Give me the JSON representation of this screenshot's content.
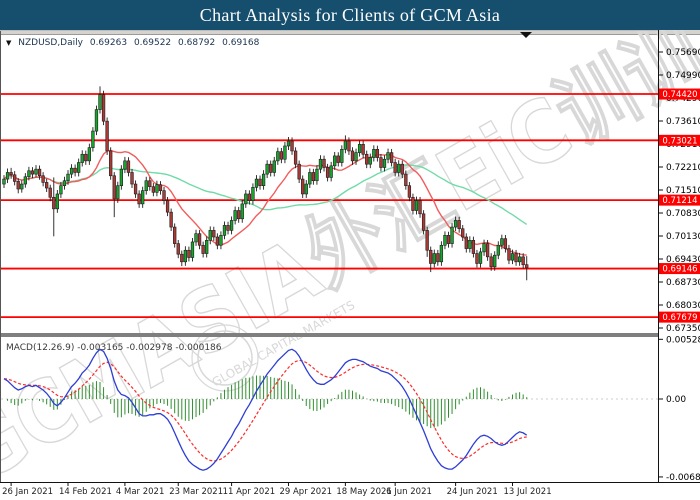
{
  "title_bar": {
    "text": "Chart Analysis for Clients of GCM Asia",
    "bg": "#164f6e",
    "fg": "#ffffff"
  },
  "chart_header": {
    "collapse_icon": "▼",
    "symbol_period": "NZDUSD,Daily",
    "open": "0.69263",
    "high": "0.69522",
    "low": "0.68792",
    "close": "0.69168"
  },
  "indicator": {
    "name": "MACD(12.26.9)",
    "value_macd": "-0.003165",
    "value_signal": "-0.002978",
    "value_histogram": "-0.000186",
    "label": "MACD(12.26.9) -0.003165 -0.002978 -0.000186"
  },
  "watermark": {
    "text_main": "GCMASIA",
    "text_suffix": "外汇EiC训训",
    "stamp": "GLOBAL CAPITAL MARKETS",
    "color": "#d8d8d8"
  },
  "shift_marker_icon": "down-triangle",
  "colors": {
    "titlebar_bg": "#164f6e",
    "titlebar_fg": "#ffffff",
    "level_line": "#ff0000",
    "tag_bg": "#ff0000",
    "tag_fg": "#ffffff",
    "bull_body": "#18a52d",
    "bear_body": "#a93a36",
    "candle_outline": "#1c1c1c",
    "ma_fast": "#f25c5c",
    "ma_slow": "#71dba8",
    "macd_line": "#2e3fd4",
    "signal_line": "#ff2a2a",
    "histogram": "#2f8f2f",
    "axis_text": "#000000",
    "frame": "#555555",
    "splitter": "#7f7f7f"
  },
  "price_axis": {
    "tick_labels": [
      "0.75690",
      "0.74990",
      "0.74290",
      "0.73610",
      "0.72910",
      "0.72210",
      "0.71510",
      "0.70830",
      "0.70130",
      "0.69430",
      "0.68730",
      "0.68030",
      "0.67350"
    ]
  },
  "macd_axis": {
    "ticks": [
      {
        "label": "0.005283",
        "value": 0.005283
      },
      {
        "label": "0.00",
        "value": 0.0
      },
      {
        "label": "-0.006897",
        "value": -0.006897
      }
    ]
  },
  "level_lines": [
    {
      "price": 0.7442,
      "label": "0.74420"
    },
    {
      "price": 0.73021,
      "label": "0.73021"
    },
    {
      "price": 0.71214,
      "label": "0.71214"
    },
    {
      "price": 0.69146,
      "label": "0.69146"
    },
    {
      "price": 0.67679,
      "label": "0.67679"
    }
  ],
  "time_axis": {
    "labels": [
      "26 Jan 2021",
      "14 Feb 2021",
      "4 Mar 2021",
      "23 Mar 2021",
      "11 Apr 2021",
      "29 Apr 2021",
      "18 May 2021",
      "6 Jun 2021",
      "24 Jun 2021",
      "13 Jul 2021"
    ],
    "bar_indices": [
      2,
      18,
      34,
      49,
      64,
      80,
      96,
      110,
      127,
      143
    ]
  },
  "chart_data": {
    "type": "candlestick",
    "symbol": "NZDUSD",
    "timeframe": "Daily",
    "price_range": [
      0.6735,
      0.7569
    ],
    "macd_range": [
      -0.006897,
      0.005283
    ],
    "last_bar_ohlc": [
      0.69263,
      0.69522,
      0.68792,
      0.69168
    ],
    "candles_ohlc": [
      [
        0.717,
        0.7197,
        0.7158,
        0.7185
      ],
      [
        0.7185,
        0.7217,
        0.7173,
        0.7205
      ],
      [
        0.7205,
        0.7219,
        0.7186,
        0.7198
      ],
      [
        0.7198,
        0.7209,
        0.7166,
        0.7178
      ],
      [
        0.7178,
        0.7188,
        0.7142,
        0.7155
      ],
      [
        0.7155,
        0.7181,
        0.7144,
        0.717
      ],
      [
        0.717,
        0.7203,
        0.7159,
        0.7192
      ],
      [
        0.7192,
        0.7222,
        0.7181,
        0.721
      ],
      [
        0.721,
        0.7221,
        0.7188,
        0.72
      ],
      [
        0.72,
        0.7227,
        0.719,
        0.7215
      ],
      [
        0.7215,
        0.7226,
        0.7183,
        0.7195
      ],
      [
        0.7195,
        0.7206,
        0.7163,
        0.7175
      ],
      [
        0.7175,
        0.7186,
        0.7146,
        0.7158
      ],
      [
        0.7158,
        0.7168,
        0.7118,
        0.713
      ],
      [
        0.713,
        0.719,
        0.7012,
        0.7095
      ],
      [
        0.7095,
        0.7152,
        0.7083,
        0.714
      ],
      [
        0.714,
        0.7176,
        0.7128,
        0.7165
      ],
      [
        0.7165,
        0.7192,
        0.7153,
        0.718
      ],
      [
        0.718,
        0.7212,
        0.7168,
        0.72
      ],
      [
        0.72,
        0.723,
        0.7188,
        0.7218
      ],
      [
        0.7218,
        0.7229,
        0.7193,
        0.7205
      ],
      [
        0.7205,
        0.7247,
        0.7193,
        0.7235
      ],
      [
        0.7235,
        0.7272,
        0.7223,
        0.726
      ],
      [
        0.726,
        0.7271,
        0.7228,
        0.724
      ],
      [
        0.724,
        0.7292,
        0.7228,
        0.728
      ],
      [
        0.728,
        0.7342,
        0.7268,
        0.733
      ],
      [
        0.733,
        0.7407,
        0.7318,
        0.7395
      ],
      [
        0.7395,
        0.7465,
        0.7383,
        0.744
      ],
      [
        0.744,
        0.7452,
        0.7348,
        0.736
      ],
      [
        0.736,
        0.7371,
        0.7258,
        0.727
      ],
      [
        0.727,
        0.7281,
        0.7183,
        0.7195
      ],
      [
        0.7195,
        0.7206,
        0.707,
        0.7125
      ],
      [
        0.7125,
        0.7177,
        0.7113,
        0.7165
      ],
      [
        0.7165,
        0.7227,
        0.7153,
        0.7215
      ],
      [
        0.7215,
        0.7252,
        0.7203,
        0.724
      ],
      [
        0.724,
        0.7251,
        0.7193,
        0.7205
      ],
      [
        0.7205,
        0.7216,
        0.7158,
        0.717
      ],
      [
        0.717,
        0.7181,
        0.7128,
        0.714
      ],
      [
        0.714,
        0.7151,
        0.7098,
        0.711
      ],
      [
        0.711,
        0.7162,
        0.7098,
        0.715
      ],
      [
        0.715,
        0.7192,
        0.7138,
        0.718
      ],
      [
        0.718,
        0.7191,
        0.715,
        0.7162
      ],
      [
        0.7162,
        0.7173,
        0.7133,
        0.7145
      ],
      [
        0.7145,
        0.718,
        0.7133,
        0.7168
      ],
      [
        0.7168,
        0.7179,
        0.7138,
        0.715
      ],
      [
        0.715,
        0.7161,
        0.7108,
        0.712
      ],
      [
        0.712,
        0.7131,
        0.7073,
        0.7085
      ],
      [
        0.7085,
        0.7096,
        0.7028,
        0.704
      ],
      [
        0.704,
        0.7051,
        0.6978,
        0.699
      ],
      [
        0.699,
        0.7001,
        0.6946,
        0.6958
      ],
      [
        0.6958,
        0.6969,
        0.6922,
        0.6935
      ],
      [
        0.6935,
        0.6982,
        0.6923,
        0.697
      ],
      [
        0.697,
        0.6981,
        0.6936,
        0.6948
      ],
      [
        0.6948,
        0.7007,
        0.6936,
        0.6995
      ],
      [
        0.6995,
        0.7032,
        0.6983,
        0.702
      ],
      [
        0.702,
        0.7031,
        0.6973,
        0.6985
      ],
      [
        0.6985,
        0.6996,
        0.6948,
        0.696
      ],
      [
        0.696,
        0.7012,
        0.6948,
        0.7
      ],
      [
        0.7,
        0.7042,
        0.6988,
        0.703
      ],
      [
        0.703,
        0.7041,
        0.6998,
        0.701
      ],
      [
        0.701,
        0.7021,
        0.6973,
        0.6985
      ],
      [
        0.6985,
        0.7027,
        0.6973,
        0.7015
      ],
      [
        0.7015,
        0.7057,
        0.7003,
        0.7045
      ],
      [
        0.7045,
        0.7056,
        0.7018,
        0.703
      ],
      [
        0.703,
        0.7072,
        0.7018,
        0.706
      ],
      [
        0.706,
        0.7102,
        0.7048,
        0.709
      ],
      [
        0.709,
        0.7101,
        0.7053,
        0.7065
      ],
      [
        0.7065,
        0.7122,
        0.7053,
        0.711
      ],
      [
        0.711,
        0.7152,
        0.7098,
        0.714
      ],
      [
        0.714,
        0.7151,
        0.7108,
        0.712
      ],
      [
        0.712,
        0.7172,
        0.7108,
        0.716
      ],
      [
        0.716,
        0.7197,
        0.7148,
        0.7185
      ],
      [
        0.7185,
        0.7196,
        0.7153,
        0.7165
      ],
      [
        0.7165,
        0.7212,
        0.7153,
        0.72
      ],
      [
        0.72,
        0.7242,
        0.7188,
        0.723
      ],
      [
        0.723,
        0.7241,
        0.7193,
        0.7205
      ],
      [
        0.7205,
        0.7252,
        0.7193,
        0.724
      ],
      [
        0.724,
        0.728,
        0.7228,
        0.7268
      ],
      [
        0.7268,
        0.7279,
        0.7233,
        0.7245
      ],
      [
        0.7245,
        0.7297,
        0.7233,
        0.7285
      ],
      [
        0.7285,
        0.7312,
        0.7273,
        0.73
      ],
      [
        0.73,
        0.7311,
        0.7258,
        0.727
      ],
      [
        0.727,
        0.7281,
        0.7218,
        0.723
      ],
      [
        0.723,
        0.7241,
        0.7173,
        0.7185
      ],
      [
        0.7185,
        0.7196,
        0.7128,
        0.714
      ],
      [
        0.714,
        0.7182,
        0.7128,
        0.717
      ],
      [
        0.717,
        0.7217,
        0.7158,
        0.7205
      ],
      [
        0.7205,
        0.7216,
        0.7168,
        0.718
      ],
      [
        0.718,
        0.7227,
        0.7168,
        0.7215
      ],
      [
        0.7215,
        0.7257,
        0.7203,
        0.7245
      ],
      [
        0.7245,
        0.7256,
        0.7208,
        0.722
      ],
      [
        0.722,
        0.7231,
        0.7178,
        0.719
      ],
      [
        0.719,
        0.7237,
        0.7178,
        0.7225
      ],
      [
        0.7225,
        0.7267,
        0.7213,
        0.7255
      ],
      [
        0.7255,
        0.7266,
        0.7223,
        0.7235
      ],
      [
        0.7235,
        0.7287,
        0.7223,
        0.7275
      ],
      [
        0.7275,
        0.7317,
        0.7263,
        0.73
      ],
      [
        0.73,
        0.7311,
        0.7258,
        0.727
      ],
      [
        0.727,
        0.7281,
        0.7228,
        0.724
      ],
      [
        0.724,
        0.7277,
        0.7228,
        0.7265
      ],
      [
        0.7265,
        0.7302,
        0.7253,
        0.729
      ],
      [
        0.729,
        0.7301,
        0.7248,
        0.726
      ],
      [
        0.726,
        0.7271,
        0.7218,
        0.723
      ],
      [
        0.723,
        0.7262,
        0.7218,
        0.725
      ],
      [
        0.725,
        0.7287,
        0.7238,
        0.7275
      ],
      [
        0.7275,
        0.7286,
        0.7238,
        0.725
      ],
      [
        0.725,
        0.7261,
        0.7208,
        0.722
      ],
      [
        0.722,
        0.7257,
        0.7208,
        0.7245
      ],
      [
        0.7245,
        0.7277,
        0.7233,
        0.7265
      ],
      [
        0.7265,
        0.7276,
        0.7223,
        0.7235
      ],
      [
        0.7235,
        0.7246,
        0.7193,
        0.7205
      ],
      [
        0.7205,
        0.7242,
        0.7193,
        0.723
      ],
      [
        0.723,
        0.7241,
        0.7188,
        0.72
      ],
      [
        0.72,
        0.7211,
        0.7153,
        0.7165
      ],
      [
        0.7165,
        0.7176,
        0.7118,
        0.713
      ],
      [
        0.713,
        0.7141,
        0.7078,
        0.709
      ],
      [
        0.709,
        0.7132,
        0.7078,
        0.712
      ],
      [
        0.712,
        0.7131,
        0.7068,
        0.708
      ],
      [
        0.708,
        0.7091,
        0.7018,
        0.703
      ],
      [
        0.703,
        0.7041,
        0.695,
        0.697
      ],
      [
        0.697,
        0.6981,
        0.6904,
        0.693
      ],
      [
        0.693,
        0.6972,
        0.6918,
        0.696
      ],
      [
        0.696,
        0.6971,
        0.6923,
        0.6935
      ],
      [
        0.6935,
        0.6997,
        0.6923,
        0.6985
      ],
      [
        0.6985,
        0.7027,
        0.6973,
        0.7015
      ],
      [
        0.7015,
        0.7026,
        0.6978,
        0.699
      ],
      [
        0.699,
        0.7052,
        0.6978,
        0.704
      ],
      [
        0.704,
        0.7072,
        0.7028,
        0.706
      ],
      [
        0.706,
        0.7071,
        0.7023,
        0.7035
      ],
      [
        0.7035,
        0.7046,
        0.6998,
        0.701
      ],
      [
        0.701,
        0.7021,
        0.6963,
        0.6975
      ],
      [
        0.6975,
        0.7012,
        0.6963,
        0.7
      ],
      [
        0.7,
        0.7011,
        0.6948,
        0.696
      ],
      [
        0.696,
        0.6971,
        0.6918,
        0.693
      ],
      [
        0.693,
        0.6977,
        0.6918,
        0.6965
      ],
      [
        0.6965,
        0.7002,
        0.6953,
        0.699
      ],
      [
        0.699,
        0.7001,
        0.6938,
        0.695
      ],
      [
        0.695,
        0.6961,
        0.6908,
        0.692
      ],
      [
        0.692,
        0.6967,
        0.6908,
        0.6955
      ],
      [
        0.6955,
        0.6997,
        0.6943,
        0.6985
      ],
      [
        0.6985,
        0.7017,
        0.6973,
        0.7005
      ],
      [
        0.7005,
        0.7016,
        0.6963,
        0.6975
      ],
      [
        0.6975,
        0.6986,
        0.6928,
        0.694
      ],
      [
        0.694,
        0.6972,
        0.6928,
        0.696
      ],
      [
        0.696,
        0.6971,
        0.6923,
        0.6935
      ],
      [
        0.6935,
        0.6962,
        0.6923,
        0.695
      ],
      [
        0.695,
        0.6961,
        0.6914,
        0.6926
      ],
      [
        0.69263,
        0.69522,
        0.68792,
        0.69168
      ]
    ],
    "macd_e4": [
      18,
      16,
      13,
      10,
      8,
      9,
      11,
      12,
      11,
      12,
      10,
      8,
      5,
      1,
      -4,
      -6,
      -3,
      1,
      6,
      11,
      14,
      18,
      23,
      26,
      30,
      36,
      41,
      44,
      42,
      36,
      27,
      16,
      8,
      4,
      3,
      1,
      -3,
      -8,
      -13,
      -15,
      -15,
      -14,
      -14,
      -13,
      -13,
      -15,
      -18,
      -23,
      -30,
      -37,
      -44,
      -50,
      -55,
      -58,
      -60,
      -62,
      -63,
      -62,
      -60,
      -57,
      -53,
      -48,
      -43,
      -38,
      -33,
      -27,
      -22,
      -16,
      -10,
      -5,
      1,
      7,
      12,
      17,
      22,
      26,
      30,
      34,
      37,
      40,
      43,
      44,
      42,
      38,
      32,
      26,
      21,
      17,
      14,
      13,
      13,
      15,
      17,
      20,
      24,
      28,
      32,
      34,
      35,
      35,
      34,
      33,
      31,
      29,
      28,
      27,
      25,
      24,
      23,
      21,
      18,
      15,
      11,
      6,
      0,
      -7,
      -14,
      -21,
      -28,
      -36,
      -44,
      -50,
      -55,
      -59,
      -61,
      -62,
      -62,
      -60,
      -57,
      -54,
      -50,
      -45,
      -40,
      -36,
      -33,
      -32,
      -33,
      -35,
      -38,
      -40,
      -41,
      -40,
      -37,
      -34,
      -31,
      -29,
      -30,
      -32
    ],
    "macd_unit": 0.0001,
    "signal_ema_alpha": 0.2,
    "ma_fast_period": 14,
    "ma_slow_period": 45
  }
}
